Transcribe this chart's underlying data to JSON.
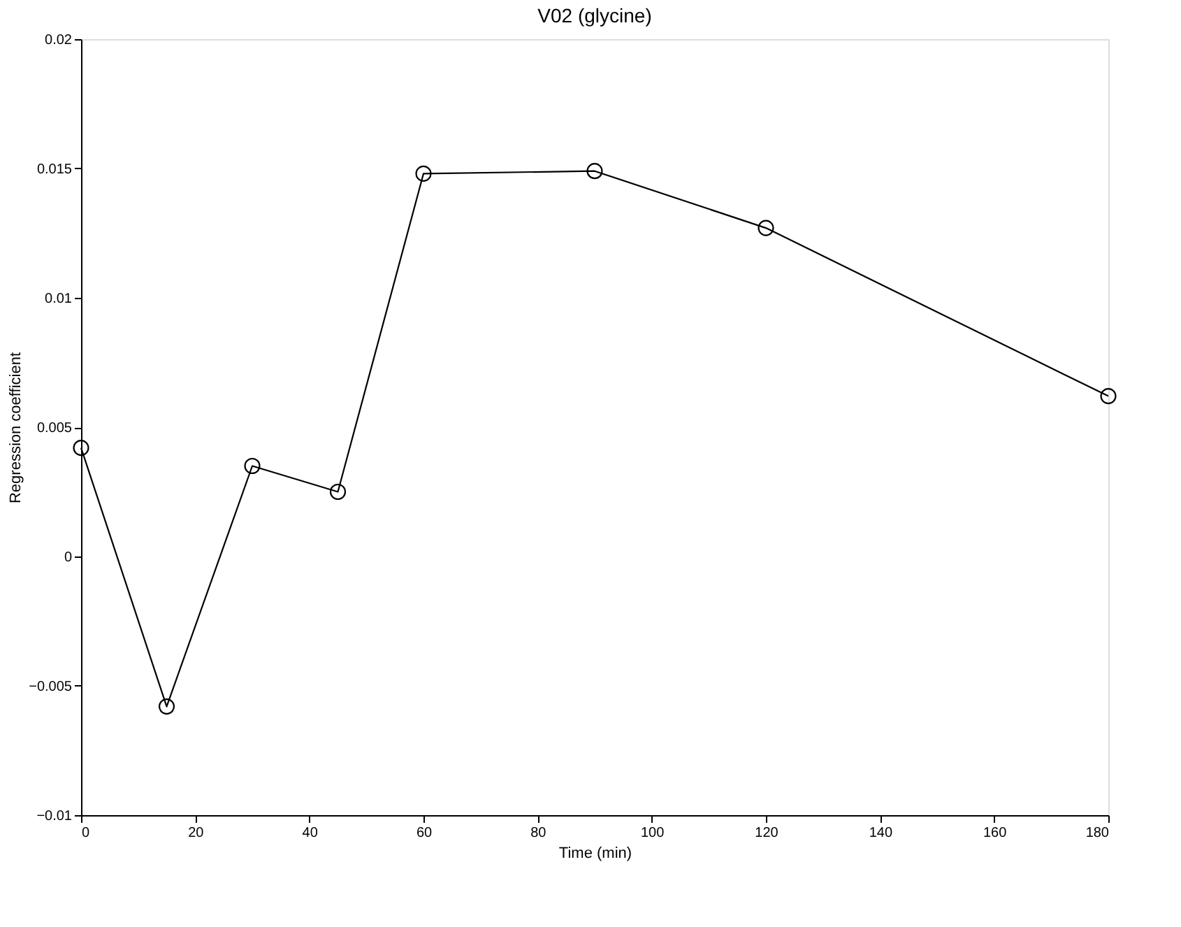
{
  "chart_data": {
    "type": "line",
    "title": "V02 (glycine)",
    "xlabel": "Time (min)",
    "ylabel": "Regression coefficient",
    "x": [
      0,
      15,
      30,
      45,
      60,
      90,
      120,
      180
    ],
    "series": [
      {
        "color": "#000000",
        "values": [
          0.0042,
          -0.0058,
          0.0035,
          0.0025,
          0.0148,
          0.0149,
          0.0127,
          0.0062
        ]
      }
    ],
    "xlim": [
      0,
      180
    ],
    "xticks": [
      0,
      20,
      40,
      60,
      80,
      100,
      120,
      140,
      160,
      180
    ],
    "ylim": [
      -0.01,
      0.02
    ],
    "yticks": [
      -0.01,
      -0.005,
      0,
      0.005,
      0.01,
      0.015,
      0.02
    ],
    "grid": false,
    "marker": "circle",
    "line_style": "solid"
  }
}
